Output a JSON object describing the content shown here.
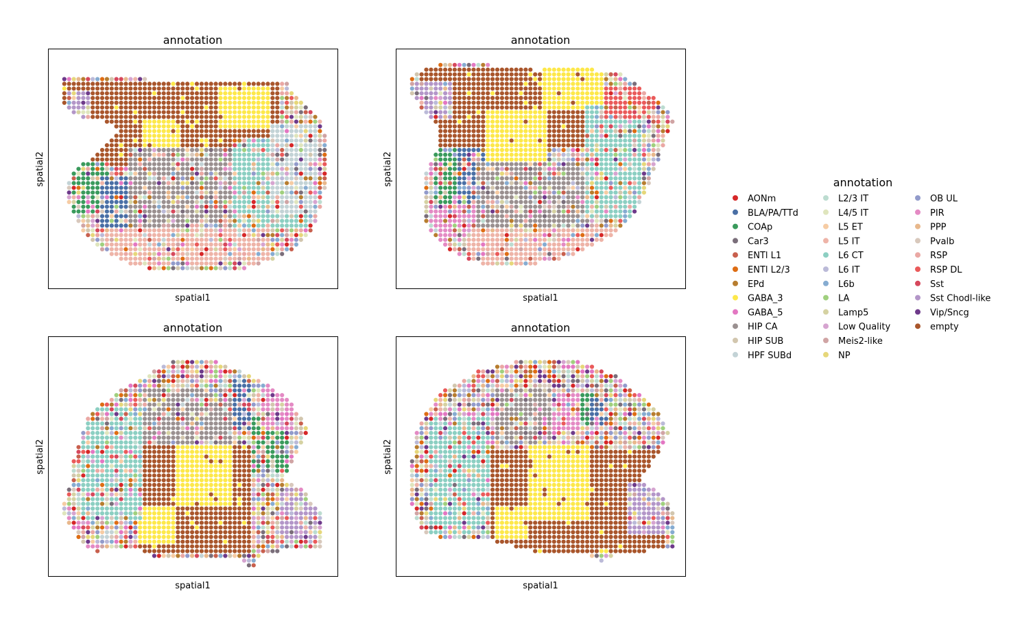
{
  "legend": {
    "title": "annotation",
    "items": [
      {
        "label": "AONm",
        "color": "#d62728"
      },
      {
        "label": "BLA/PA/TTd",
        "color": "#4a6fa5"
      },
      {
        "label": "COAp",
        "color": "#3a9a5c"
      },
      {
        "label": "Car3",
        "color": "#7a6e7a"
      },
      {
        "label": "ENTl L1",
        "color": "#c8604e"
      },
      {
        "label": "ENTl L2/3",
        "color": "#de6d14"
      },
      {
        "label": "EPd",
        "color": "#b77d2f"
      },
      {
        "label": "GABA_3",
        "color": "#fde84a"
      },
      {
        "label": "GABA_5",
        "color": "#e377c2"
      },
      {
        "label": "HIP CA",
        "color": "#9a9090"
      },
      {
        "label": "HIP SUB",
        "color": "#d2c6ae"
      },
      {
        "label": "HPF SUBd",
        "color": "#c3d3d6"
      },
      {
        "label": "L2/3 IT",
        "color": "#bcdcd0"
      },
      {
        "label": "L4/5 IT",
        "color": "#dfe5bd"
      },
      {
        "label": "L5 ET",
        "color": "#f6cca4"
      },
      {
        "label": "L5 IT",
        "color": "#eeb4a8"
      },
      {
        "label": "L6 CT",
        "color": "#8ccfc2"
      },
      {
        "label": "L6 IT",
        "color": "#bbbad8"
      },
      {
        "label": "L6b",
        "color": "#86acd1"
      },
      {
        "label": "LA",
        "color": "#a0d07e"
      },
      {
        "label": "Lamp5",
        "color": "#d5d2a2"
      },
      {
        "label": "Low Quality",
        "color": "#d6a4d0"
      },
      {
        "label": "Meis2-like",
        "color": "#d0a4a4"
      },
      {
        "label": "NP",
        "color": "#e6d77a"
      },
      {
        "label": "OB UL",
        "color": "#929bcb"
      },
      {
        "label": "PIR",
        "color": "#e48ac4"
      },
      {
        "label": "PPP",
        "color": "#e8b88c"
      },
      {
        "label": "Pvalb",
        "color": "#d8c8bc"
      },
      {
        "label": "RSP",
        "color": "#eaa8a4"
      },
      {
        "label": "RSP DL",
        "color": "#ea5a5a"
      },
      {
        "label": "Sst",
        "color": "#d6485c"
      },
      {
        "label": "Sst Chodl-like",
        "color": "#b396c8"
      },
      {
        "label": "Vip/Sncg",
        "color": "#6e3a8a"
      },
      {
        "label": "empty",
        "color": "#a9562c"
      }
    ]
  },
  "chart_data": [
    {
      "type": "scatter",
      "title": "annotation",
      "xlabel": "spatial1",
      "ylabel": "spatial2",
      "grid": false,
      "xlim": [
        0,
        44
      ],
      "ylim": [
        0,
        36
      ],
      "y_inverted": true,
      "regions": [
        {
          "label": "empty",
          "x": [
            1,
            36
          ],
          "y": [
            4,
            18
          ]
        },
        {
          "label": "GABA_3",
          "x": [
            14,
            20
          ],
          "y": [
            10,
            18
          ]
        },
        {
          "label": "GABA_3",
          "x": [
            26,
            34
          ],
          "y": [
            5,
            12
          ]
        },
        {
          "label": "COAp",
          "x": [
            3,
            9
          ],
          "y": [
            17,
            25
          ]
        },
        {
          "label": "BLA/PA/TTd",
          "x": [
            7,
            13
          ],
          "y": [
            19,
            27
          ]
        },
        {
          "label": "HIP CA",
          "x": [
            12,
            28
          ],
          "y": [
            15,
            29
          ]
        },
        {
          "label": "L6 CT",
          "x": [
            28,
            40
          ],
          "y": [
            13,
            27
          ]
        },
        {
          "label": "HPF SUBd",
          "x": [
            34,
            42
          ],
          "y": [
            11,
            25
          ]
        },
        {
          "label": "L5 IT",
          "x": [
            8,
            34
          ],
          "y": [
            27,
            33
          ]
        },
        {
          "label": "Sst Chodl-like",
          "x": [
            2,
            6
          ],
          "y": [
            6,
            11
          ]
        }
      ]
    },
    {
      "type": "scatter",
      "title": "annotation",
      "xlabel": "spatial1",
      "ylabel": "spatial2",
      "grid": false,
      "xlim": [
        0,
        44
      ],
      "ylim": [
        0,
        36
      ],
      "y_inverted": true,
      "regions": [
        {
          "label": "empty",
          "x": [
            3,
            29
          ],
          "y": [
            2,
            15
          ]
        },
        {
          "label": "GABA_3",
          "x": [
            13,
            23
          ],
          "y": [
            9,
            20
          ]
        },
        {
          "label": "GABA_3",
          "x": [
            22,
            32
          ],
          "y": [
            2,
            9
          ]
        },
        {
          "label": "COAp",
          "x": [
            5,
            10
          ],
          "y": [
            15,
            24
          ]
        },
        {
          "label": "BLA/PA/TTd",
          "x": [
            9,
            13
          ],
          "y": [
            15,
            25
          ]
        },
        {
          "label": "HIP CA",
          "x": [
            12,
            30
          ],
          "y": [
            17,
            28
          ]
        },
        {
          "label": "L6 CT",
          "x": [
            29,
            38
          ],
          "y": [
            8,
            26
          ]
        },
        {
          "label": "RSP DL",
          "x": [
            32,
            40
          ],
          "y": [
            5,
            10
          ]
        },
        {
          "label": "PIR",
          "x": [
            4,
            12
          ],
          "y": [
            24,
            30
          ]
        },
        {
          "label": "L5 IT",
          "x": [
            10,
            34
          ],
          "y": [
            27,
            33
          ]
        },
        {
          "label": "Sst Chodl-like",
          "x": [
            2,
            8
          ],
          "y": [
            4,
            10
          ]
        }
      ]
    },
    {
      "type": "scatter",
      "title": "annotation",
      "xlabel": "spatial1",
      "ylabel": "spatial2",
      "grid": false,
      "xlim": [
        0,
        44
      ],
      "ylim": [
        0,
        36
      ],
      "y_inverted": true,
      "regions": [
        {
          "label": "empty",
          "x": [
            13,
            31
          ],
          "y": [
            16,
            33
          ]
        },
        {
          "label": "GABA_3",
          "x": [
            19,
            28
          ],
          "y": [
            16,
            26
          ]
        },
        {
          "label": "GABA_3",
          "x": [
            13,
            19
          ],
          "y": [
            26,
            32
          ]
        },
        {
          "label": "BLA/PA/TTd",
          "x": [
            28,
            31
          ],
          "y": [
            6,
            14
          ]
        },
        {
          "label": "COAp",
          "x": [
            31,
            37
          ],
          "y": [
            12,
            21
          ]
        },
        {
          "label": "PIR",
          "x": [
            33,
            38
          ],
          "y": [
            6,
            14
          ]
        },
        {
          "label": "HIP CA",
          "x": [
            14,
            28
          ],
          "y": [
            7,
            16
          ]
        },
        {
          "label": "L6 CT",
          "x": [
            4,
            14
          ],
          "y": [
            10,
            28
          ]
        },
        {
          "label": "Sst Chodl-like",
          "x": [
            36,
            42
          ],
          "y": [
            23,
            31
          ]
        }
      ]
    },
    {
      "type": "scatter",
      "title": "annotation",
      "xlabel": "spatial1",
      "ylabel": "spatial2",
      "grid": false,
      "xlim": [
        0,
        44
      ],
      "ylim": [
        0,
        36
      ],
      "y_inverted": true,
      "regions": [
        {
          "label": "empty",
          "x": [
            14,
            42
          ],
          "y": [
            17,
            33
          ]
        },
        {
          "label": "GABA_3",
          "x": [
            20,
            30
          ],
          "y": [
            16,
            28
          ]
        },
        {
          "label": "GABA_3",
          "x": [
            15,
            20
          ],
          "y": [
            26,
            31
          ]
        },
        {
          "label": "COAp",
          "x": [
            27,
            31
          ],
          "y": [
            8,
            13
          ]
        },
        {
          "label": "BLA/PA/TTd",
          "x": [
            30,
            33
          ],
          "y": [
            9,
            13
          ]
        },
        {
          "label": "PIR",
          "x": [
            23,
            28
          ],
          "y": [
            8,
            14
          ]
        },
        {
          "label": "HIP CA",
          "x": [
            15,
            24
          ],
          "y": [
            7,
            16
          ]
        },
        {
          "label": "L6 CT",
          "x": [
            4,
            14
          ],
          "y": [
            12,
            30
          ]
        },
        {
          "label": "Sst Chodl-like",
          "x": [
            36,
            42
          ],
          "y": [
            22,
            30
          ]
        }
      ]
    }
  ]
}
